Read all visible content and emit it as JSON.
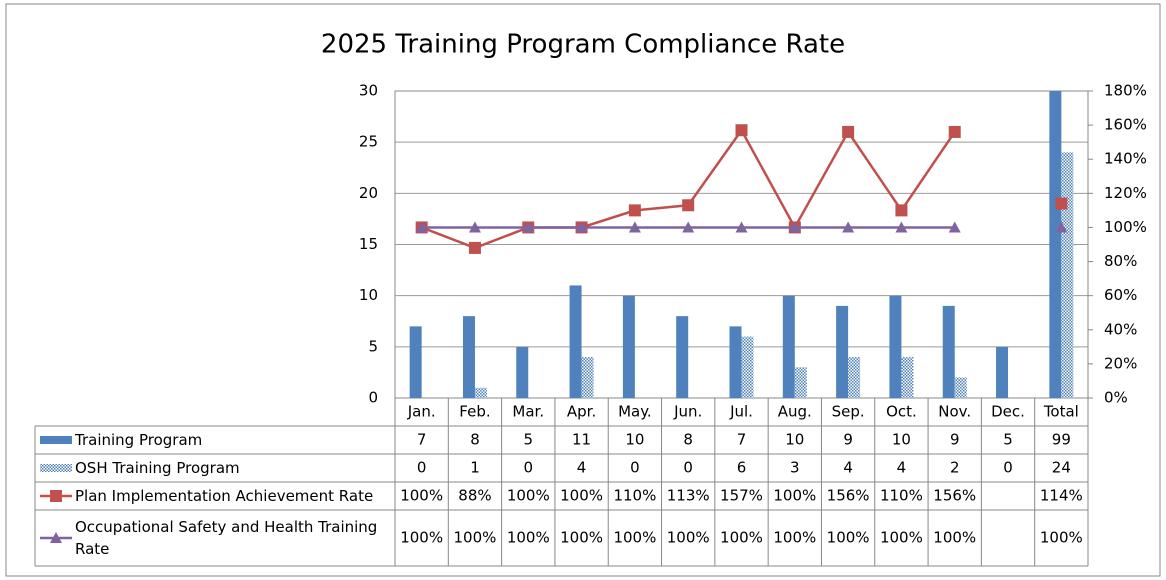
{
  "chart_data": {
    "type": "bar",
    "title": "2025 Training Program Compliance Rate",
    "categories": [
      "Jan.",
      "Feb.",
      "Mar.",
      "Apr.",
      "May.",
      "Jun.",
      "Jul.",
      "Aug.",
      "Sep.",
      "Oct.",
      "Nov.",
      "Dec.",
      "Total"
    ],
    "ylim": [
      0,
      30
    ],
    "yticks": [
      0,
      5,
      10,
      15,
      20,
      25,
      30
    ],
    "y2lim": [
      0,
      180
    ],
    "y2ticks": [
      {
        "value": 0,
        "label": "0%"
      },
      {
        "value": 20,
        "label": "20%"
      },
      {
        "value": 40,
        "label": "40%"
      },
      {
        "value": 60,
        "label": "60%"
      },
      {
        "value": 80,
        "label": "80%"
      },
      {
        "value": 100,
        "label": "100%"
      },
      {
        "value": 120,
        "label": "120%"
      },
      {
        "value": 140,
        "label": "140%"
      },
      {
        "value": 160,
        "label": "160%"
      },
      {
        "value": 180,
        "label": "180%"
      }
    ],
    "grid": true,
    "series": [
      {
        "name": "Training Program",
        "type": "bar",
        "color": "#4f81bd",
        "values": [
          7,
          8,
          5,
          11,
          10,
          8,
          7,
          10,
          9,
          10,
          9,
          5,
          99
        ]
      },
      {
        "name": "OSH Training Program",
        "type": "bar",
        "color": "#4f81bd",
        "pattern": true,
        "values": [
          0,
          1,
          0,
          4,
          0,
          0,
          6,
          3,
          4,
          4,
          2,
          0,
          24
        ]
      },
      {
        "name": "Plan Implementation Achievement Rate",
        "type": "line",
        "axis": "y2",
        "color": "#c0504d",
        "marker": "square",
        "values": [
          100,
          88,
          100,
          100,
          110,
          113,
          157,
          100,
          156,
          110,
          156,
          null,
          114
        ],
        "value_labels": [
          "100%",
          "88%",
          "100%",
          "100%",
          "110%",
          "113%",
          "157%",
          "100%",
          "156%",
          "110%",
          "156%",
          null,
          "114%"
        ]
      },
      {
        "name": "Occupational Safety and Health Training Rate",
        "type": "line",
        "axis": "y2",
        "color": "#8064a2",
        "marker": "triangle",
        "values": [
          100,
          100,
          100,
          100,
          100,
          100,
          100,
          100,
          100,
          100,
          100,
          null,
          100
        ],
        "value_labels": [
          "100%",
          "100%",
          "100%",
          "100%",
          "100%",
          "100%",
          "100%",
          "100%",
          "100%",
          "100%",
          "100%",
          null,
          "100%"
        ]
      }
    ]
  }
}
